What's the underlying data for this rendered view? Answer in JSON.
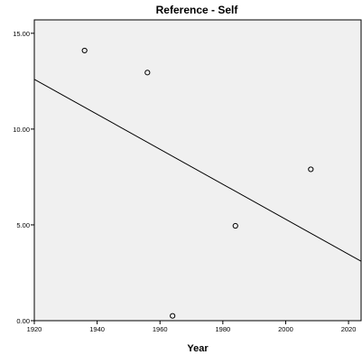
{
  "chart_data": {
    "type": "scatter",
    "title": "Reference - Self",
    "xlabel": "Year",
    "ylabel": "",
    "xlim": [
      1920,
      2024
    ],
    "ylim": [
      0,
      15.7
    ],
    "x_ticks": [
      1920,
      1940,
      1960,
      1980,
      2000,
      2020
    ],
    "x_tick_labels": [
      "1920",
      "1940",
      "1960",
      "1980",
      "2000",
      "2020"
    ],
    "y_ticks": [
      0,
      5,
      10,
      15
    ],
    "y_tick_labels": [
      "0.00",
      "5.00",
      "10.00",
      "15.00"
    ],
    "grid": false,
    "legend": "none",
    "points": [
      {
        "x": 1936,
        "y": 14.1
      },
      {
        "x": 1956,
        "y": 12.95
      },
      {
        "x": 1964,
        "y": 0.25
      },
      {
        "x": 1984,
        "y": 4.95
      },
      {
        "x": 2008,
        "y": 7.9
      }
    ],
    "fit_line": {
      "x": [
        1920,
        2024
      ],
      "y": [
        12.6,
        3.1
      ]
    },
    "colors": {
      "plot_background": "#f0f0f0",
      "marker": "#000000",
      "line": "#000000"
    }
  }
}
